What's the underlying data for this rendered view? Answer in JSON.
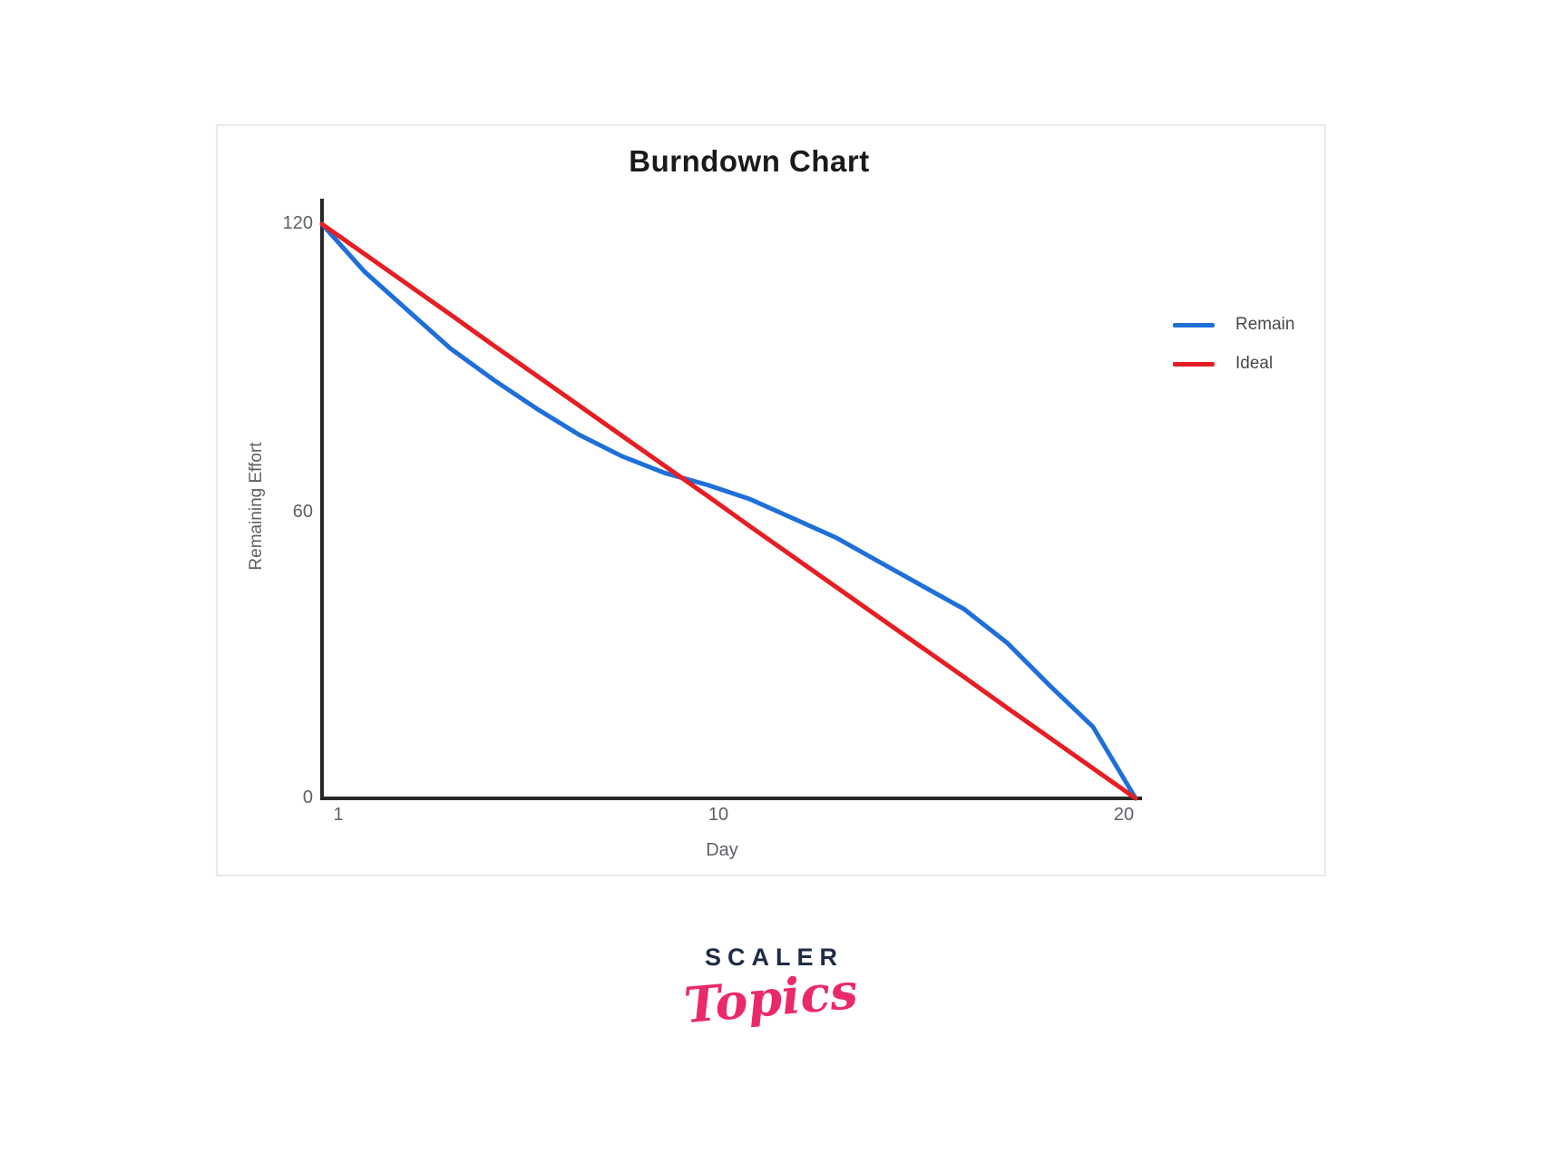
{
  "card": {
    "background": "#ffffff",
    "border_color": "#e9e9e9"
  },
  "chart_data": {
    "type": "line",
    "title": "Burndown Chart",
    "xlabel": "Day",
    "ylabel": "Remaining Effort",
    "x": [
      1,
      2,
      3,
      4,
      5,
      6,
      7,
      8,
      9,
      10,
      11,
      12,
      13,
      14,
      15,
      16,
      17,
      18,
      19,
      20
    ],
    "series": [
      {
        "name": "Remain",
        "color": "#1e6fd9",
        "values": [
          120,
          110,
          102,
          94,
          87.5,
          81.5,
          76,
          71.5,
          68,
          65.5,
          62.5,
          58.5,
          54.5,
          49.5,
          44.5,
          39.5,
          32.5,
          23.5,
          15,
          0
        ]
      },
      {
        "name": "Ideal",
        "color": "#e61e23",
        "values": [
          120,
          113.7,
          107.4,
          101.1,
          94.7,
          88.4,
          82.1,
          75.8,
          69.5,
          63.2,
          56.8,
          50.5,
          44.2,
          37.9,
          31.6,
          25.3,
          18.9,
          12.6,
          6.3,
          0
        ]
      }
    ],
    "xlim": [
      1,
      20
    ],
    "ylim": [
      0,
      120
    ],
    "x_ticks": [
      "1",
      "10",
      "20"
    ],
    "y_ticks": [
      "120",
      "60",
      "0"
    ],
    "grid": "off",
    "legend_position": "right",
    "axis_color": "#272727",
    "tick_label_color": "#5d6066",
    "legend_label_color": "#47494d",
    "title_color": "#1a1a1a"
  },
  "footer_logo": {
    "brand": "SCALER",
    "sub_brand": "Topics",
    "brand_color": "#202b45",
    "sub_brand_color": "#ea2a68"
  }
}
